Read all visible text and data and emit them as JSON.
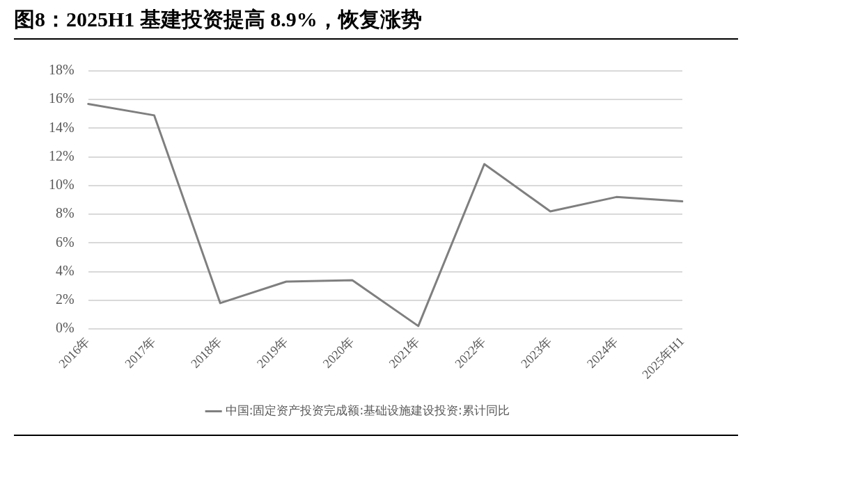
{
  "chart_data": {
    "type": "line",
    "title": "图8：2025H1 基建投资提高 8.9%，恢复涨势",
    "categories": [
      "2016年",
      "2017年",
      "2018年",
      "2019年",
      "2020年",
      "2021年",
      "2022年",
      "2023年",
      "2024年",
      "2025年H1"
    ],
    "series": [
      {
        "name": "中国:固定资产投资完成额:基础设施建设投资:累计同比",
        "color": "#7f7f7f",
        "values": [
          15.7,
          14.9,
          1.8,
          3.3,
          3.4,
          0.2,
          11.5,
          8.2,
          9.2,
          8.9
        ]
      }
    ],
    "ylim": [
      0,
      18
    ],
    "yticks": [
      {
        "value": 0,
        "label": "0%"
      },
      {
        "value": 2,
        "label": "2%"
      },
      {
        "value": 4,
        "label": "4%"
      },
      {
        "value": 6,
        "label": "6%"
      },
      {
        "value": 8,
        "label": "8%"
      },
      {
        "value": 10,
        "label": "10%"
      },
      {
        "value": 12,
        "label": "12%"
      },
      {
        "value": 14,
        "label": "14%"
      },
      {
        "value": 16,
        "label": "16%"
      },
      {
        "value": 18,
        "label": "18%"
      }
    ],
    "grid": "y",
    "legend": "bottom",
    "marker": "none",
    "line_style": "solid"
  }
}
